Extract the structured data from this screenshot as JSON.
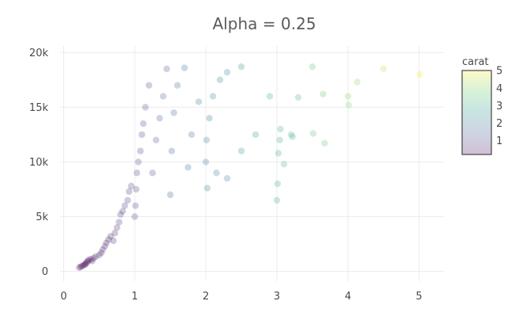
{
  "chart_data": {
    "type": "scatter",
    "title": "Alpha = 0.25",
    "xlabel": "",
    "ylabel": "",
    "xlim": [
      -0.05,
      5.35
    ],
    "ylim": [
      -900,
      20600
    ],
    "x_ticks": [
      {
        "value": 0,
        "label": "0"
      },
      {
        "value": 1,
        "label": "1"
      },
      {
        "value": 2,
        "label": "2"
      },
      {
        "value": 3,
        "label": "3"
      },
      {
        "value": 4,
        "label": "4"
      },
      {
        "value": 5,
        "label": "5"
      }
    ],
    "y_ticks": [
      {
        "value": 0,
        "label": "0"
      },
      {
        "value": 5000,
        "label": "5k"
      },
      {
        "value": 10000,
        "label": "10k"
      },
      {
        "value": 15000,
        "label": "15k"
      },
      {
        "value": 20000,
        "label": "20k"
      }
    ],
    "grid": true,
    "marker_opacity": 0.25,
    "colorbar": {
      "title": "carat",
      "min": 0.2,
      "max": 5.01,
      "ticks": [
        {
          "value": 1,
          "label": "1"
        },
        {
          "value": 2,
          "label": "2"
        },
        {
          "value": 3,
          "label": "3"
        },
        {
          "value": 4,
          "label": "4"
        },
        {
          "value": 5,
          "label": "5"
        }
      ],
      "colorscale": [
        "#440154",
        "#3b528b",
        "#21918c",
        "#5ec962",
        "#fde725"
      ],
      "placement": "right"
    },
    "series": [
      {
        "color_by": "x",
        "points": [
          [
            0.22,
            350
          ],
          [
            0.24,
            420
          ],
          [
            0.26,
            500
          ],
          [
            0.28,
            560
          ],
          [
            0.3,
            620
          ],
          [
            0.31,
            700
          ],
          [
            0.32,
            820
          ],
          [
            0.34,
            900
          ],
          [
            0.35,
            1050
          ],
          [
            0.38,
            1100
          ],
          [
            0.4,
            950
          ],
          [
            0.42,
            1200
          ],
          [
            0.45,
            1350
          ],
          [
            0.5,
            1500
          ],
          [
            0.53,
            1700
          ],
          [
            0.55,
            2000
          ],
          [
            0.58,
            2300
          ],
          [
            0.6,
            2600
          ],
          [
            0.63,
            2900
          ],
          [
            0.66,
            3200
          ],
          [
            0.7,
            2800
          ],
          [
            0.72,
            3500
          ],
          [
            0.75,
            4000
          ],
          [
            0.78,
            4500
          ],
          [
            0.8,
            5200
          ],
          [
            0.83,
            5500
          ],
          [
            0.86,
            6000
          ],
          [
            0.9,
            6500
          ],
          [
            0.92,
            7300
          ],
          [
            0.95,
            7800
          ],
          [
            1.0,
            5000
          ],
          [
            1.01,
            6000
          ],
          [
            1.02,
            7500
          ],
          [
            1.03,
            9000
          ],
          [
            1.05,
            10000
          ],
          [
            1.08,
            11000
          ],
          [
            1.1,
            12500
          ],
          [
            1.12,
            13500
          ],
          [
            1.15,
            15000
          ],
          [
            1.2,
            17000
          ],
          [
            1.25,
            9000
          ],
          [
            1.3,
            12000
          ],
          [
            1.35,
            14000
          ],
          [
            1.4,
            16000
          ],
          [
            1.45,
            18500
          ],
          [
            1.5,
            7000
          ],
          [
            1.52,
            11000
          ],
          [
            1.55,
            14500
          ],
          [
            1.6,
            17000
          ],
          [
            1.7,
            18600
          ],
          [
            1.75,
            9500
          ],
          [
            1.8,
            12500
          ],
          [
            1.9,
            15500
          ],
          [
            2.0,
            10000
          ],
          [
            2.01,
            12000
          ],
          [
            2.05,
            14000
          ],
          [
            2.1,
            16000
          ],
          [
            2.2,
            17500
          ],
          [
            2.3,
            18200
          ],
          [
            2.5,
            18700
          ],
          [
            2.02,
            7600
          ],
          [
            2.15,
            9000
          ],
          [
            2.3,
            8500
          ],
          [
            2.5,
            11000
          ],
          [
            2.7,
            12500
          ],
          [
            2.9,
            16000
          ],
          [
            3.0,
            6500
          ],
          [
            3.01,
            8000
          ],
          [
            3.02,
            10800
          ],
          [
            3.04,
            12000
          ],
          [
            3.05,
            13000
          ],
          [
            3.1,
            9800
          ],
          [
            3.2,
            12500
          ],
          [
            3.22,
            12300
          ],
          [
            3.3,
            15900
          ],
          [
            3.5,
            18700
          ],
          [
            3.51,
            12600
          ],
          [
            3.65,
            16200
          ],
          [
            3.67,
            11700
          ],
          [
            4.0,
            16000
          ],
          [
            4.01,
            15200
          ],
          [
            4.13,
            17300
          ],
          [
            4.5,
            18500
          ],
          [
            5.01,
            18000
          ]
        ]
      }
    ]
  }
}
